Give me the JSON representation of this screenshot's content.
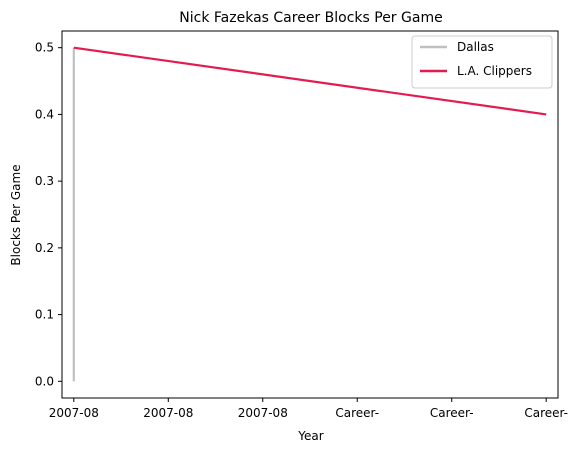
{
  "chart_data": {
    "type": "line",
    "title": "Nick Fazekas Career Blocks Per Game",
    "xlabel": "Year",
    "ylabel": "Blocks Per Game",
    "x_tick_labels": [
      "2007-08",
      "2007-08",
      "2007-08",
      "Career-",
      "Career-",
      "Career-"
    ],
    "y_ticks": [
      0.0,
      0.1,
      0.2,
      0.3,
      0.4,
      0.5
    ],
    "y_tick_labels": [
      "0.0",
      "0.1",
      "0.2",
      "0.3",
      "0.4",
      "0.5"
    ],
    "ylim": [
      -0.025,
      0.525
    ],
    "xlim": [
      -0.125,
      5.125
    ],
    "legend_position": "upper-right",
    "grid": false,
    "series": [
      {
        "name": "Dallas",
        "color": "#c0c0c0",
        "points": [
          {
            "x": 0,
            "y": 0.0
          },
          {
            "x": 0,
            "y": 0.5
          }
        ]
      },
      {
        "name": "L.A. Clippers",
        "color": "#e31c4f",
        "points": [
          {
            "x": 0,
            "y": 0.5
          },
          {
            "x": 5,
            "y": 0.4
          }
        ]
      }
    ]
  }
}
